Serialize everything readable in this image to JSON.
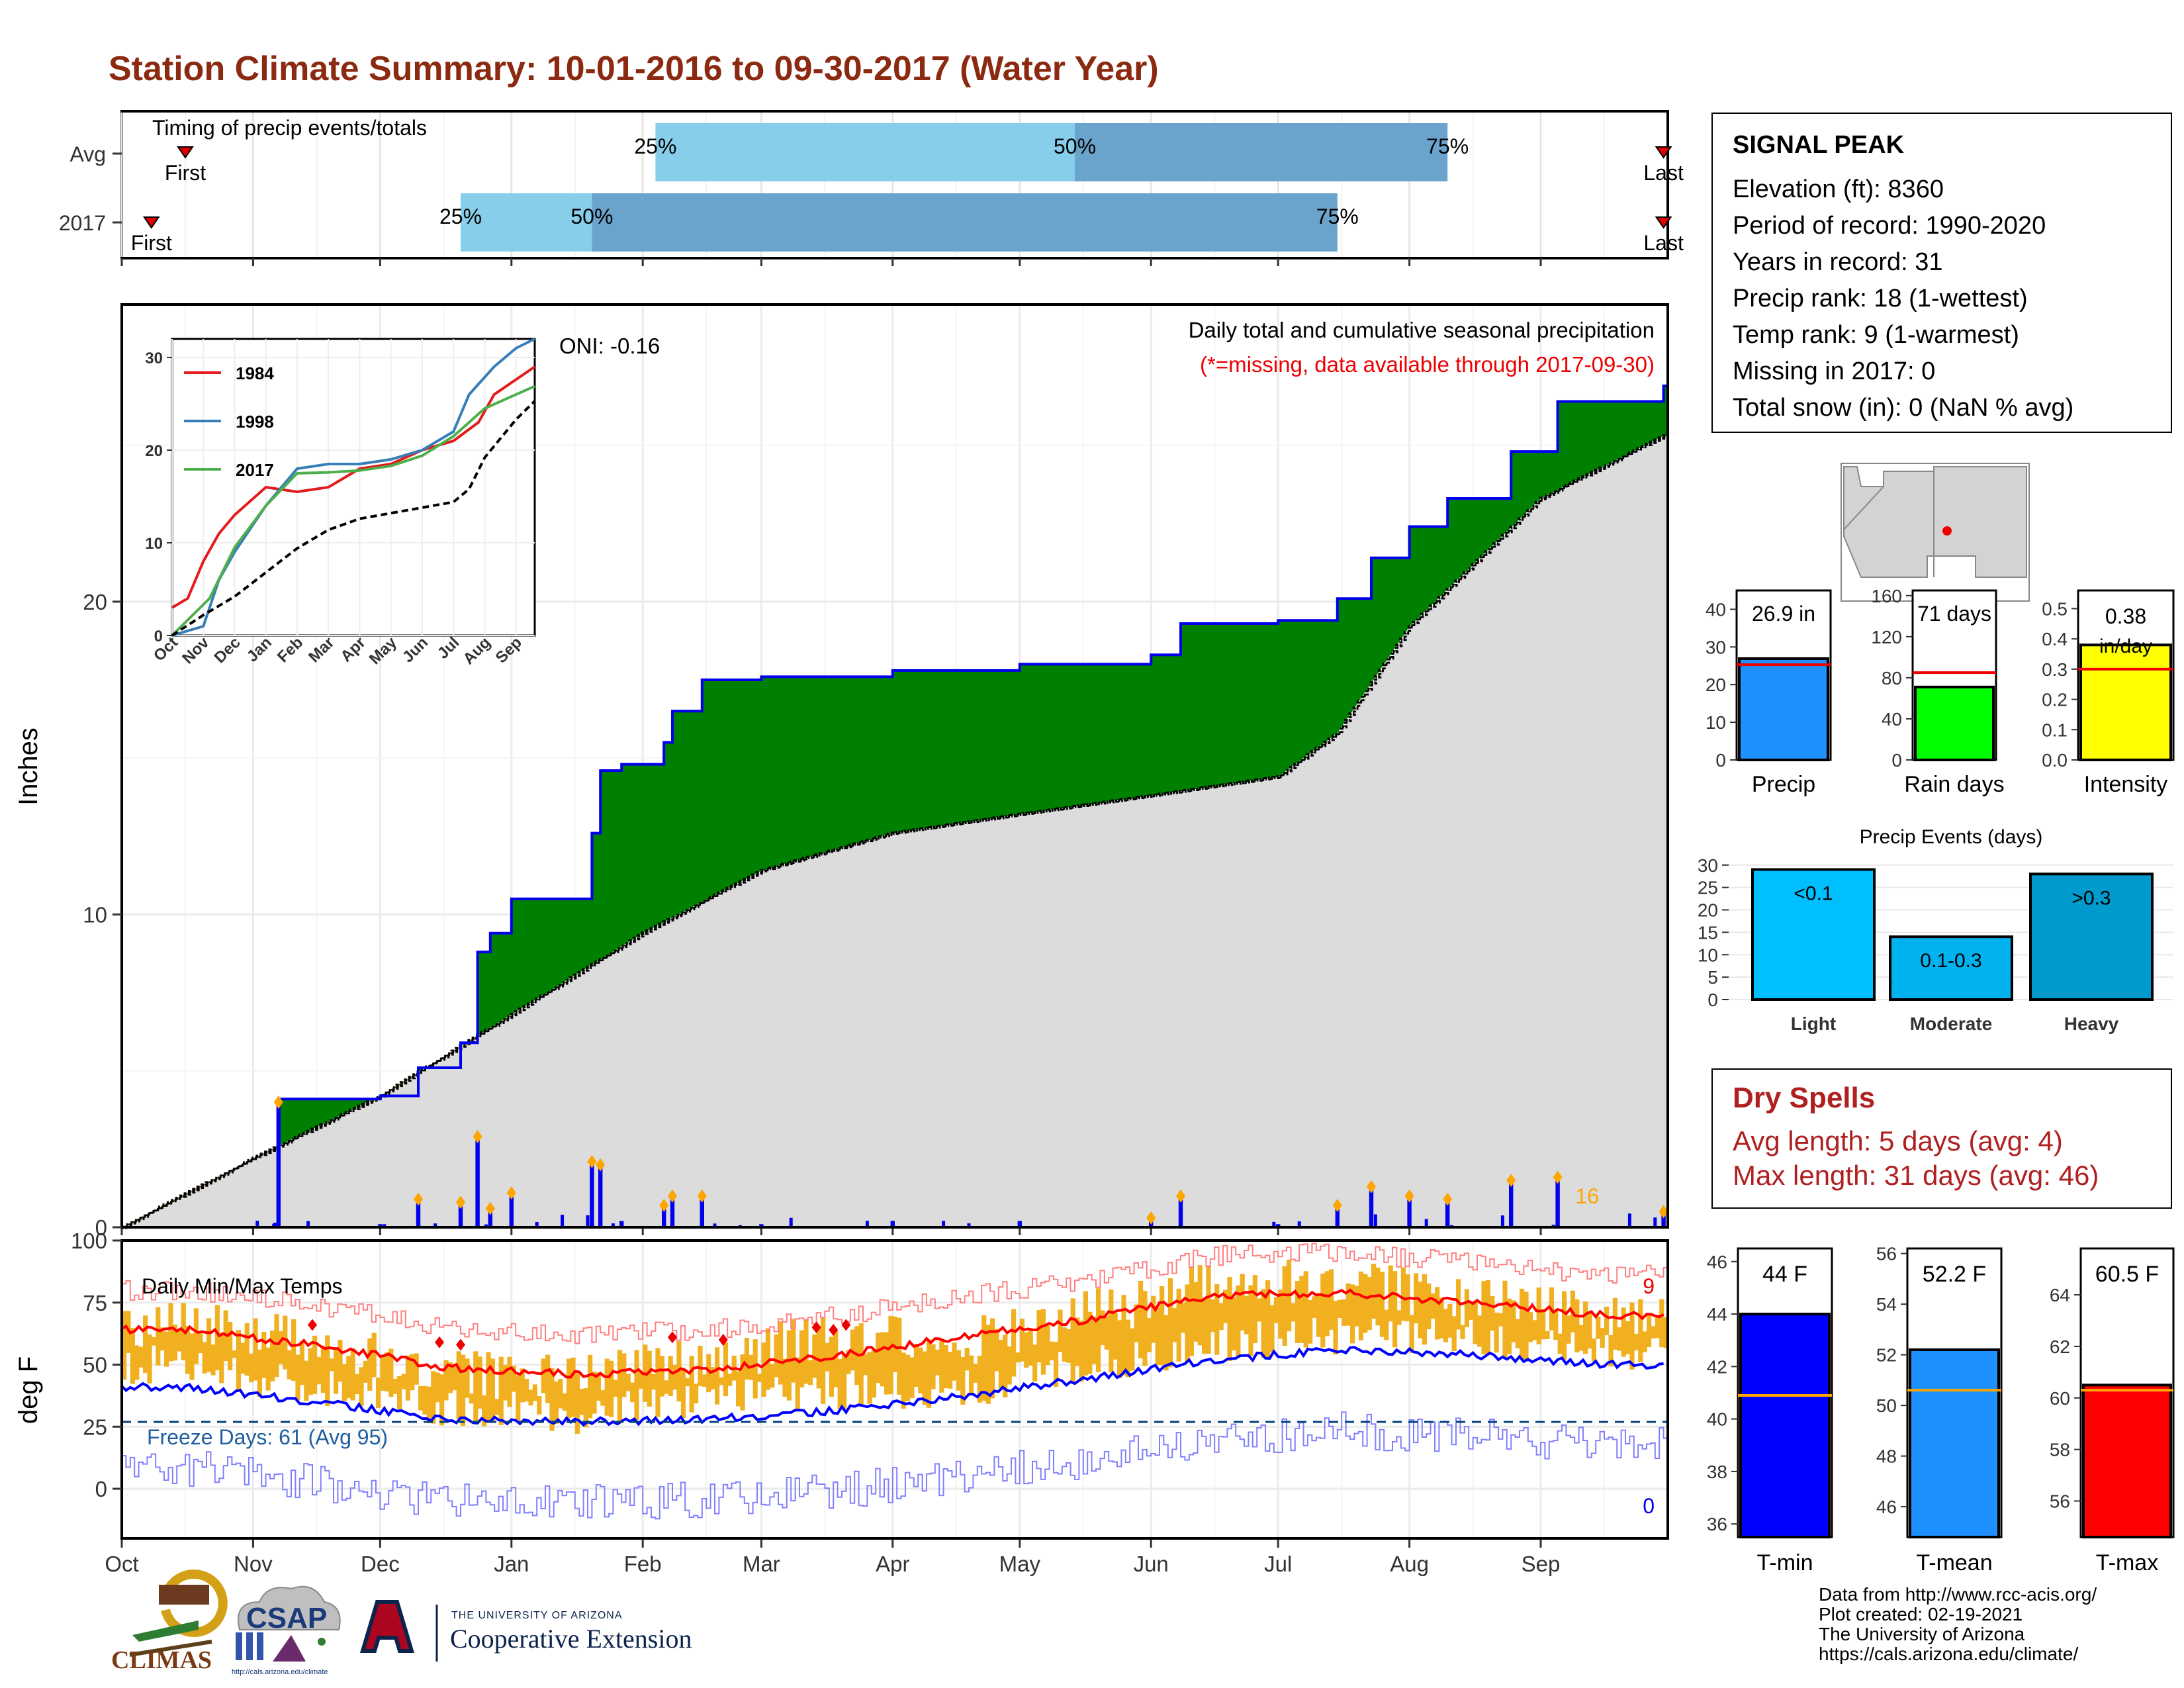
{
  "title": "Station Climate Summary: 10-01-2016 to 09-30-2017 (Water Year)",
  "timing": {
    "label": "Timing of precip events/totals",
    "rows": [
      {
        "name": "Avg",
        "first_label": "First",
        "last_label": "Last",
        "first_date": "2016-10-16",
        "last_date": "2017-09-30",
        "q25_label": "25%",
        "q50_label": "50%",
        "q75_label": "75%",
        "q25_date": "2017-02-04",
        "q50_date": "2017-05-14",
        "q75_date": "2017-08-10"
      },
      {
        "name": "2017",
        "first_label": "First",
        "last_label": "Last",
        "first_date": "2016-10-08",
        "last_date": "2017-09-30",
        "q25_label": "25%",
        "q50_label": "50%",
        "q75_label": "75%",
        "q25_date": "2016-12-20",
        "q50_date": "2017-01-20",
        "q75_date": "2017-07-15"
      }
    ]
  },
  "precip": {
    "oni": "ONI: -0.16",
    "caption": "Daily total and cumulative seasonal precipitation",
    "missing_note": "(*=missing, data available through 2017-09-30)",
    "ylabel": "Inches",
    "yticks": [
      "0",
      "10",
      "20"
    ],
    "count_label": "16",
    "legend_years": [
      "1984",
      "1998",
      "2017"
    ],
    "inset_yticks": [
      "0",
      "10",
      "20",
      "30"
    ],
    "inset_xticks": [
      "Oct",
      "Nov",
      "Dec",
      "Jan",
      "Feb",
      "Mar",
      "Apr",
      "May",
      "Jun",
      "Jul",
      "Aug",
      "Sep"
    ]
  },
  "temps": {
    "label": "Daily Min/Max Temps",
    "freeze": "Freeze Days: 61 (Avg 95)",
    "ylabel": "deg F",
    "yticks": [
      "0",
      "25",
      "50",
      "75",
      "100"
    ],
    "max_count": "9",
    "min_count": "0"
  },
  "months": [
    "Oct",
    "Nov",
    "Dec",
    "Jan",
    "Feb",
    "Mar",
    "Apr",
    "May",
    "Jun",
    "Jul",
    "Aug",
    "Sep"
  ],
  "station": {
    "name": "SIGNAL PEAK",
    "lines": [
      "Elevation (ft): 8360",
      "Period of record: 1990-2020",
      "Years in record: 31",
      "Precip rank: 18 (1-wettest)",
      "Temp rank: 9 (1-warmest)",
      "Missing in 2017: 0",
      "Total snow (in): 0 (NaN % avg)"
    ]
  },
  "summary_bars": [
    {
      "label": "Precip",
      "value_label": "26.9 in",
      "value": 26.9,
      "avg": 25.3,
      "color": "#1e90ff",
      "ymax": 45,
      "ticks": [
        "0",
        "10",
        "20",
        "30",
        "40"
      ]
    },
    {
      "label": "Rain days",
      "value_label": "71 days",
      "value": 71,
      "avg": 85,
      "color": "#00ff00",
      "ymax": 165,
      "ticks": [
        "0",
        "40",
        "80",
        "120",
        "160"
      ]
    },
    {
      "label": "Intensity",
      "value_label": "0.38 in/day",
      "value": 0.38,
      "avg": 0.3,
      "color": "#ffff00",
      "ymax": 0.56,
      "ticks": [
        "0.0",
        "0.1",
        "0.2",
        "0.3",
        "0.4",
        "0.5"
      ]
    }
  ],
  "events": {
    "title": "Precip Events (days)",
    "ticks": [
      "0",
      "5",
      "10",
      "15",
      "20",
      "25",
      "30"
    ],
    "bars": [
      {
        "name": "Light",
        "label": "<0.1",
        "value": 29,
        "color": "#00bfff"
      },
      {
        "name": "Moderate",
        "label": "0.1-0.3",
        "value": 14,
        "color": "#00b2ee"
      },
      {
        "name": "Heavy",
        "label": ">0.3",
        "value": 28,
        "color": "#009acd"
      }
    ]
  },
  "dry_spells": {
    "title": "Dry Spells",
    "avg": "Avg length: 5 days (avg: 4)",
    "max": "Max length: 31 days (avg: 46)"
  },
  "temp_bars": [
    {
      "label": "T-min",
      "value_label": "44 F",
      "value": 44.0,
      "avg": 40.9,
      "color": "#0000ff",
      "ymin": 35.5,
      "ymax": 46.5,
      "ticks": [
        "36",
        "38",
        "40",
        "42",
        "44",
        "46"
      ]
    },
    {
      "label": "T-mean",
      "value_label": "52.2 F",
      "value": 52.2,
      "avg": 50.6,
      "color": "#1e90ff",
      "ymin": 44.8,
      "ymax": 56.2,
      "ticks": [
        "46",
        "48",
        "50",
        "52",
        "54",
        "56"
      ]
    },
    {
      "label": "T-max",
      "value_label": "60.5 F",
      "value": 60.5,
      "avg": 60.3,
      "color": "#ff0000",
      "ymin": 54.6,
      "ymax": 65.8,
      "ticks": [
        "56",
        "58",
        "60",
        "62",
        "64"
      ]
    }
  ],
  "credits": [
    "Data from http://www.rcc-acis.org/",
    "Plot created: 02-19-2021",
    "The University of Arizona",
    "https://cals.arizona.edu/climate/"
  ],
  "logos": {
    "climas": "CLIMAS",
    "csap": "CSAP",
    "csap_url": "http://cals.arizona.edu/climate",
    "ua_small": "THE UNIVERSITY OF ARIZONA",
    "ua_big": "Cooperative Extension"
  },
  "chart_data": [
    {
      "type": "area",
      "title": "Daily total and cumulative seasonal precipitation",
      "ylabel": "Inches",
      "ylim": [
        0,
        29.5
      ],
      "series": [
        {
          "name": "2017",
          "x": [
            "2016-10-01",
            "2016-11-06",
            "2016-11-07",
            "2016-12-01",
            "2016-12-10",
            "2016-12-20",
            "2016-12-24",
            "2016-12-27",
            "2017-01-01",
            "2017-01-07",
            "2017-01-20",
            "2017-01-22",
            "2017-01-27",
            "2017-02-06",
            "2017-02-08",
            "2017-02-15",
            "2017-03-01",
            "2017-04-01",
            "2017-05-01",
            "2017-06-01",
            "2017-06-08",
            "2017-07-01",
            "2017-07-15",
            "2017-07-23",
            "2017-08-01",
            "2017-08-10",
            "2017-08-25",
            "2017-09-05",
            "2017-09-30"
          ],
          "y": [
            0.0,
            0.1,
            4.1,
            4.2,
            5.1,
            5.9,
            8.8,
            9.4,
            10.5,
            10.5,
            12.6,
            14.6,
            14.8,
            15.5,
            16.5,
            17.5,
            17.6,
            17.8,
            18.0,
            18.3,
            19.3,
            19.4,
            20.1,
            21.4,
            22.4,
            23.3,
            24.8,
            26.4,
            26.9
          ]
        },
        {
          "name": "Avg",
          "x": [
            "2016-10-01",
            "2016-11-01",
            "2016-12-01",
            "2017-01-01",
            "2017-02-01",
            "2017-03-01",
            "2017-04-01",
            "2017-05-01",
            "2017-06-01",
            "2017-07-01",
            "2017-07-15",
            "2017-08-01",
            "2017-09-01",
            "2017-09-30"
          ],
          "y": [
            0.0,
            2.2,
            4.2,
            6.8,
            9.4,
            11.4,
            12.6,
            13.2,
            13.8,
            14.4,
            15.8,
            19.2,
            23.3,
            25.3
          ]
        }
      ]
    },
    {
      "type": "line",
      "title": "Daily Min/Max Temps",
      "ylabel": "deg F",
      "ylim": [
        -20,
        100
      ],
      "x": [
        "Oct",
        "Nov",
        "Dec",
        "Jan",
        "Feb",
        "Mar",
        "Apr",
        "May",
        "Jun",
        "Jul",
        "Aug",
        "Sep"
      ],
      "series": [
        {
          "name": "avg max",
          "values": [
            64,
            58,
            49,
            46,
            48,
            53,
            61,
            68,
            78,
            79,
            75,
            70
          ]
        },
        {
          "name": "avg min",
          "values": [
            41,
            35,
            28,
            27,
            28,
            31,
            37,
            44,
            52,
            56,
            54,
            50
          ]
        },
        {
          "name": "daily max",
          "values": [
            66,
            59,
            47,
            44,
            52,
            62,
            58,
            70,
            82,
            83,
            75,
            70
          ]
        },
        {
          "name": "daily min",
          "values": [
            42,
            33,
            25,
            22,
            28,
            32,
            32,
            41,
            51,
            54,
            53,
            47
          ]
        }
      ]
    }
  ]
}
